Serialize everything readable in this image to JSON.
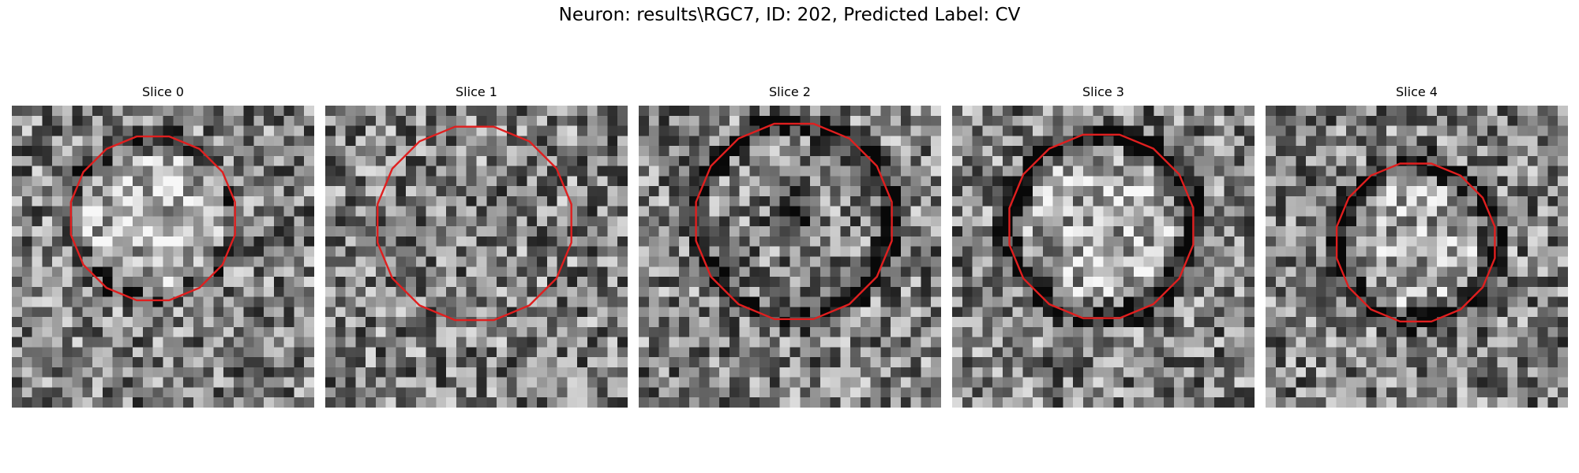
{
  "title": "Neuron: results\\RGC7, ID: 202, Predicted Label: CV",
  "panels": [
    {
      "label": "Slice 0",
      "seed": 11,
      "contour": {
        "cx": 14.0,
        "cy": 11.2,
        "r": 8.3
      },
      "dark_ring": 0.25,
      "center_bright": 0.2,
      "center_dark": 0.0
    },
    {
      "label": "Slice 1",
      "seed": 23,
      "contour": {
        "cx": 14.8,
        "cy": 11.7,
        "r": 9.8
      },
      "dark_ring": 0.0,
      "center_bright": 0.0,
      "center_dark": 0.0
    },
    {
      "label": "Slice 2",
      "seed": 37,
      "contour": {
        "cx": 15.4,
        "cy": 11.5,
        "r": 9.9
      },
      "dark_ring": 0.6,
      "center_bright": 0.0,
      "center_dark": 0.45
    },
    {
      "label": "Slice 3",
      "seed": 41,
      "contour": {
        "cx": 14.8,
        "cy": 12.0,
        "r": 9.3
      },
      "dark_ring": 0.55,
      "center_bright": 0.15,
      "center_dark": 0.0
    },
    {
      "label": "Slice 4",
      "seed": 53,
      "contour": {
        "cx": 14.9,
        "cy": 13.6,
        "r": 8.0
      },
      "dark_ring": 0.5,
      "center_bright": 0.15,
      "center_dark": 0.0
    }
  ],
  "colors": {
    "contour": "#e01f1f",
    "background": "#ffffff"
  }
}
